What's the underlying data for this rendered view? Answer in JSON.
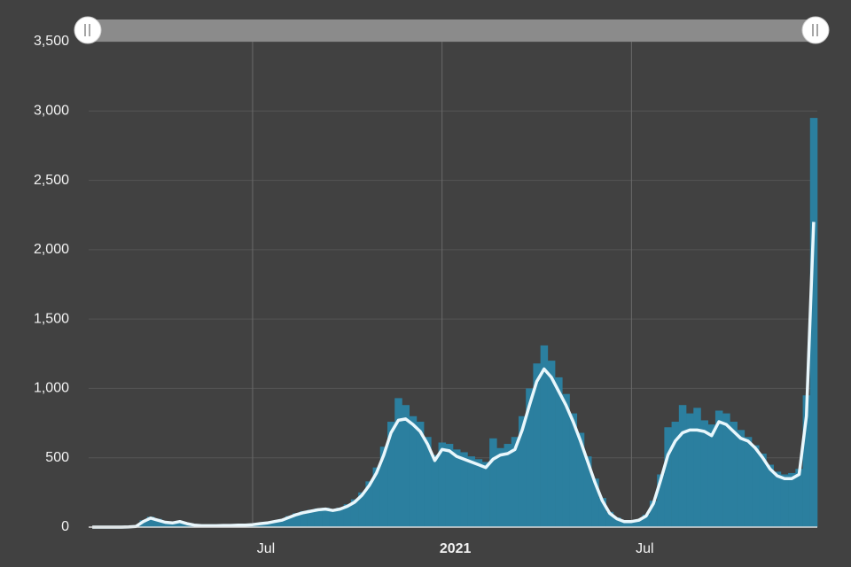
{
  "chart_data": {
    "type": "bar",
    "categories": [
      null,
      null,
      null,
      null,
      null,
      null,
      null,
      null,
      null,
      null,
      null,
      null,
      null,
      null,
      null,
      null,
      null,
      null,
      null,
      null,
      null,
      null,
      "Jul",
      null,
      null,
      null,
      null,
      null,
      null,
      null,
      null,
      null,
      null,
      null,
      null,
      null,
      null,
      null,
      null,
      null,
      null,
      null,
      null,
      null,
      null,
      null,
      null,
      null,
      "2021",
      null,
      null,
      null,
      null,
      null,
      null,
      null,
      null,
      null,
      null,
      null,
      null,
      null,
      null,
      null,
      null,
      null,
      null,
      null,
      null,
      null,
      null,
      null,
      null,
      null,
      "Jul",
      null,
      null,
      null,
      null,
      null,
      null,
      null,
      null,
      null,
      null,
      null,
      null,
      null,
      null,
      null,
      null,
      null,
      null,
      null,
      null,
      null,
      null,
      null,
      null,
      null
    ],
    "series": [
      {
        "color": "#2b7f9f",
        "values": [
          0,
          0,
          0,
          0,
          0,
          3,
          8,
          50,
          75,
          60,
          40,
          35,
          45,
          30,
          18,
          12,
          12,
          12,
          14,
          14,
          18,
          18,
          20,
          28,
          35,
          45,
          58,
          80,
          100,
          115,
          125,
          135,
          140,
          130,
          140,
          165,
          200,
          250,
          330,
          430,
          580,
          760,
          930,
          880,
          800,
          760,
          650,
          520,
          610,
          600,
          560,
          540,
          510,
          490,
          470,
          640,
          570,
          600,
          650,
          800,
          1000,
          1180,
          1310,
          1200,
          1080,
          960,
          820,
          680,
          510,
          350,
          210,
          110,
          70,
          45,
          45,
          55,
          90,
          190,
          380,
          720,
          760,
          880,
          820,
          860,
          770,
          740,
          840,
          820,
          760,
          700,
          650,
          590,
          530,
          450,
          400,
          380,
          390,
          420,
          950,
          2950
        ]
      },
      {
        "color": "#e9f7fc",
        "values": [
          0,
          0,
          0,
          0,
          0,
          2,
          5,
          40,
          65,
          50,
          35,
          30,
          40,
          25,
          15,
          10,
          10,
          10,
          12,
          12,
          15,
          15,
          18,
          25,
          30,
          40,
          50,
          70,
          90,
          105,
          115,
          125,
          130,
          120,
          130,
          150,
          180,
          230,
          300,
          390,
          520,
          680,
          770,
          780,
          740,
          690,
          600,
          480,
          560,
          550,
          510,
          490,
          470,
          450,
          430,
          490,
          520,
          530,
          560,
          700,
          880,
          1050,
          1140,
          1080,
          980,
          880,
          760,
          620,
          470,
          320,
          190,
          100,
          60,
          40,
          40,
          50,
          80,
          170,
          340,
          520,
          620,
          680,
          700,
          700,
          690,
          660,
          760,
          740,
          690,
          640,
          620,
          570,
          500,
          420,
          370,
          350,
          350,
          380,
          800,
          2200
        ]
      }
    ],
    "ylim": [
      0,
      3500
    ],
    "yticks": [
      0,
      500,
      {
        "value": 1000,
        "label": "1,000"
      },
      {
        "value": 1500,
        "label": "1,500"
      },
      {
        "value": 2000,
        "label": "2,000"
      },
      {
        "value": 2500,
        "label": "2,500"
      },
      {
        "value": 3000,
        "label": "3,000"
      },
      {
        "value": 3500,
        "label": "3,500"
      }
    ],
    "grid": true
  }
}
